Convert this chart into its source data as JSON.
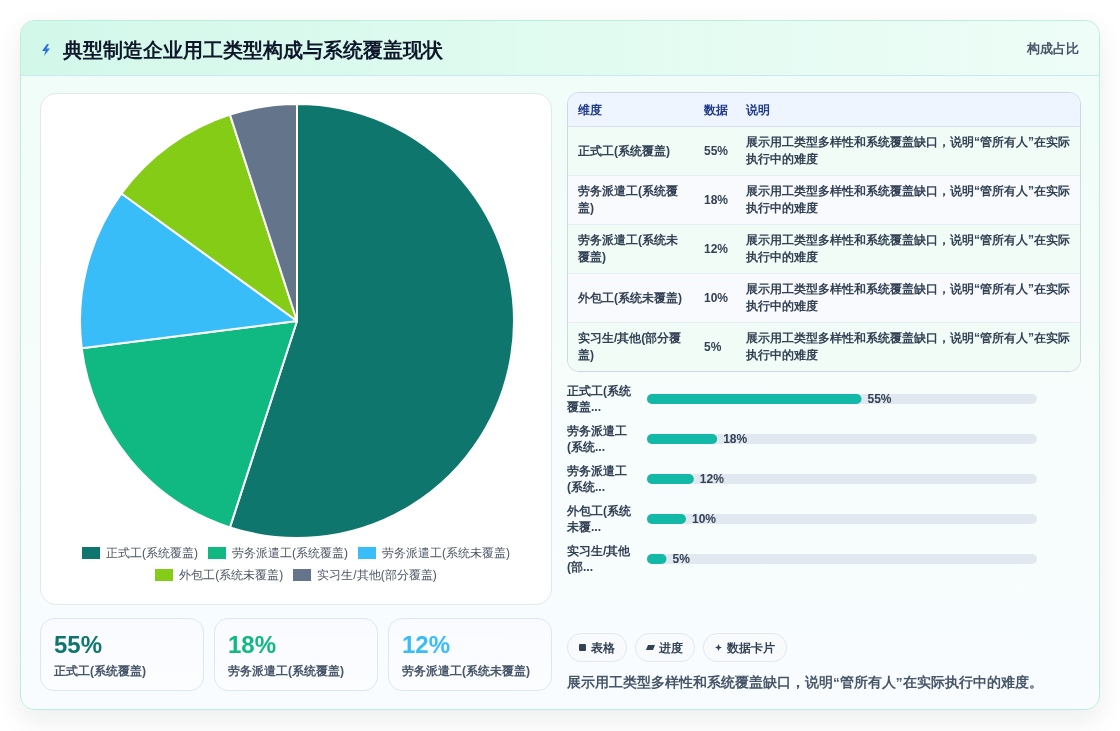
{
  "chart_data": [
    {
      "type": "pie",
      "title": "典型制造企业用工类型构成与系统覆盖现状",
      "categories": [
        "正式工(系统覆盖)",
        "劳务派遣工(系统覆盖)",
        "劳务派遣工(系统未覆盖)",
        "外包工(系统未覆盖)",
        "实习生/其他(部分覆盖)"
      ],
      "values": [
        55,
        18,
        12,
        10,
        5
      ],
      "colors": [
        "#0f766e",
        "#10b981",
        "#38bdf8",
        "#84cc16",
        "#64748b"
      ],
      "legend": "bottom"
    },
    {
      "type": "other",
      "title": "构成占比",
      "categories": [
        "正式工(系统覆盖)",
        "劳务派遣工(系统覆盖)",
        "劳务派遣工(系统未覆盖)",
        "外包工(系统未覆盖)",
        "实习生/其他(部分覆盖)"
      ],
      "value_labels": [
        "55%",
        "18%",
        "12%",
        "10%",
        "5%"
      ],
      "annotations": [
        "维度",
        "数据",
        "说明",
        "展示用工类型多样性和系统覆盖缺口，说明“管所有人”在实际执行中的难度",
        "展示用工类型多样性和系统覆盖缺口，说明“管所有人”在实际执行中的难度",
        "展示用工类型多样性和系统覆盖缺口，说明“管所有人”在实际执行中的难度",
        "展示用工类型多样性和系统覆盖缺口，说明“管所有人”在实际执行中的难度",
        "展示用工类型多样性和系统覆盖缺口，说明“管所有人”在实际执行中的难度"
      ]
    },
    {
      "type": "bar",
      "orientation": "horizontal",
      "categories": [
        "正式工(系统覆盖...",
        "劳务派遣工(系统...",
        "劳务派遣工(系统...",
        "外包工(系统未覆...",
        "实习生/其他(部..."
      ],
      "values": [
        55,
        18,
        12,
        10,
        5
      ],
      "value_labels": [
        "55%",
        "18%",
        "12%",
        "10%",
        "5%"
      ],
      "color": "#14b8a6",
      "tick_labels": "y"
    },
    {
      "type": "other",
      "categories": [
        "正式工(系统覆盖)",
        "劳务派遣工(系统覆盖)",
        "劳务派遣工(系统未覆盖)"
      ],
      "value_labels": [
        "55%",
        "18%",
        "12%"
      ]
    },
    {
      "type": "other",
      "annotations": [
        "表格",
        "进度",
        "数据卡片",
        "展示用工类型多样性和系统覆盖缺口，说明“管所有人”在实际执行中的难度。"
      ]
    }
  ]
}
